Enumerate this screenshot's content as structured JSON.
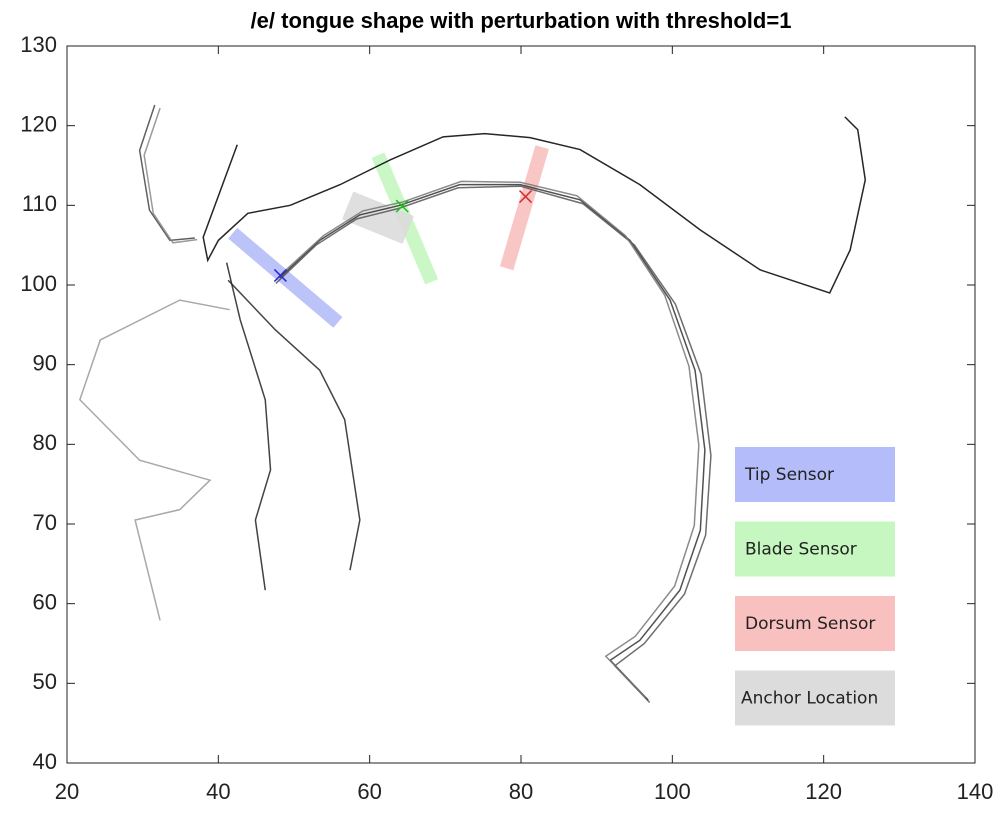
{
  "chart_data": {
    "type": "line",
    "title": "/e/ tongue shape with perturbation with threshold=1",
    "xlim": [
      20,
      140
    ],
    "ylim": [
      40,
      130
    ],
    "xticks": [
      20,
      40,
      60,
      80,
      100,
      120,
      140
    ],
    "yticks": [
      40,
      50,
      60,
      70,
      80,
      90,
      100,
      110,
      120,
      130
    ],
    "series": [
      {
        "color": "#000000",
        "x": [
          42.5,
          38.0,
          38.6,
          40.0,
          43.9,
          49.5,
          56.1,
          62.7,
          69.7,
          75.2,
          81.2,
          87.8,
          95.7,
          103.7,
          111.6,
          120.8,
          123.5,
          125.5,
          124.5,
          122.8
        ],
        "values": [
          117.6,
          106.0,
          103.1,
          105.6,
          109.0,
          110.0,
          112.6,
          115.7,
          118.6,
          119.0,
          118.5,
          117.0,
          112.6,
          106.9,
          101.9,
          99.0,
          104.4,
          113.2,
          119.5,
          121.1
        ]
      },
      {
        "color": "#333333",
        "x": [
          48.1,
          53.4,
          58.7,
          64.0,
          71.9,
          79.9,
          87.8,
          94.4,
          99.7,
          103.0,
          104.3,
          103.7,
          101.0,
          95.7,
          91.8,
          96.8
        ],
        "values": [
          100.9,
          105.6,
          108.8,
          110.0,
          112.6,
          112.6,
          110.7,
          105.6,
          98.1,
          89.3,
          79.3,
          69.2,
          61.7,
          55.4,
          52.9,
          47.9
        ]
      },
      {
        "color": "#555555",
        "x": [
          47.6,
          52.9,
          58.3,
          63.8,
          71.7,
          79.9,
          88.2,
          95.0,
          100.4,
          103.8,
          105.1,
          104.4,
          101.6,
          96.3,
          92.4,
          97.0
        ],
        "values": [
          100.2,
          105.0,
          108.3,
          109.6,
          112.2,
          112.4,
          110.2,
          105.0,
          97.6,
          88.8,
          78.6,
          68.6,
          61.2,
          55.0,
          52.2,
          47.6
        ]
      },
      {
        "color": "#777777",
        "x": [
          48.6,
          53.9,
          59.1,
          64.3,
          72.1,
          79.9,
          87.4,
          93.8,
          99.0,
          102.2,
          103.5,
          102.9,
          100.3,
          95.1,
          91.2,
          96.5
        ],
        "values": [
          101.6,
          106.2,
          109.3,
          110.4,
          113.0,
          112.9,
          111.2,
          106.2,
          98.7,
          89.8,
          79.9,
          69.8,
          62.2,
          55.9,
          53.4,
          48.2
        ]
      },
      {
        "color": "#444444",
        "x": [
          31.6,
          29.6,
          30.9,
          33.6,
          36.9
        ],
        "values": [
          122.6,
          116.9,
          109.4,
          105.6,
          105.9
        ]
      },
      {
        "color": "#888888",
        "x": [
          32.3,
          30.2,
          31.4,
          34.0,
          37.2
        ],
        "values": [
          122.2,
          116.3,
          109.0,
          105.3,
          105.7
        ]
      },
      {
        "color": "#222222",
        "x": [
          41.1,
          42.9,
          46.2,
          46.9,
          44.9,
          46.2
        ],
        "values": [
          102.8,
          95.6,
          85.6,
          76.8,
          70.5,
          61.7
        ]
      },
      {
        "color": "#222222",
        "x": [
          41.3,
          47.5,
          53.4,
          56.7,
          58.7,
          57.4
        ],
        "values": [
          100.6,
          94.4,
          89.3,
          83.1,
          70.5,
          64.2
        ]
      },
      {
        "color": "#999999",
        "x": [
          41.5,
          34.9,
          24.4,
          21.7,
          29.6,
          38.9,
          34.9,
          29.0,
          32.3
        ],
        "values": [
          96.9,
          98.1,
          93.1,
          85.6,
          78.0,
          75.5,
          71.8,
          70.5,
          57.9
        ]
      }
    ],
    "sensors": [
      {
        "name": "Tip Sensor",
        "color": "#b4bdf9",
        "marker_color": "#2a2ad0",
        "x": 48.2,
        "y": 101.2,
        "band_x": [
          41.9,
          55.8
        ],
        "band_y": [
          106.5,
          95.3
        ]
      },
      {
        "name": "Blade Sensor",
        "color": "#c6f7c0",
        "marker_color": "#22bb22",
        "x": 64.3,
        "y": 109.9,
        "band_x": [
          61.1,
          68.2
        ],
        "band_y": [
          116.3,
          100.4
        ]
      },
      {
        "name": "Dorsum Sensor",
        "color": "#f9c0c0",
        "marker_color": "#d03030",
        "x": 80.6,
        "y": 111.1,
        "band_x": [
          82.8,
          78.1
        ],
        "band_y": [
          117.3,
          102.1
        ]
      },
      {
        "name": "Anchor Location",
        "color": "#dcdcdc",
        "band_x": [
          57.1,
          65.1
        ],
        "band_y": [
          110.0,
          106.9
        ]
      }
    ]
  }
}
